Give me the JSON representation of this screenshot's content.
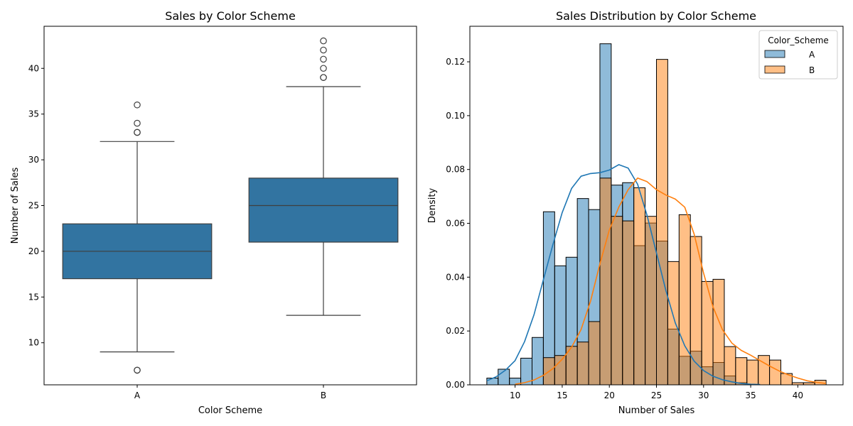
{
  "chart_data": [
    {
      "type": "box",
      "title": "Sales by Color Scheme",
      "xlabel": "Color Scheme",
      "ylabel": "Number of Sales",
      "ylim": [
        5.4,
        44.6
      ],
      "yticks": [
        10,
        15,
        20,
        25,
        30,
        35,
        40
      ],
      "categories": [
        "A",
        "B"
      ],
      "color": "#3274a1",
      "boxes": [
        {
          "category": "A",
          "q1": 17,
          "median": 20,
          "q3": 23,
          "whisker_low": 9,
          "whisker_high": 32,
          "outliers": [
            7,
            7,
            33,
            33,
            34,
            36
          ]
        },
        {
          "category": "B",
          "q1": 21,
          "median": 25,
          "q3": 28,
          "whisker_low": 13,
          "whisker_high": 38,
          "outliers": [
            39,
            39,
            40,
            41,
            42,
            43
          ]
        }
      ]
    },
    {
      "type": "histogram",
      "title": "Sales Distribution by Color Scheme",
      "xlabel": "Number of Sales",
      "ylabel": "Density",
      "xlim": [
        5.2,
        44.8
      ],
      "ylim": [
        0,
        0.1332
      ],
      "xticks": [
        10,
        15,
        20,
        25,
        30,
        35,
        40
      ],
      "yticks": [
        0.0,
        0.02,
        0.04,
        0.06,
        0.08,
        0.1,
        0.12
      ],
      "ytick_labels": [
        "0.00",
        "0.02",
        "0.04",
        "0.06",
        "0.08",
        "0.10",
        "0.12"
      ],
      "legend": {
        "title": "Color_Scheme",
        "position": "top-right"
      },
      "bin_start": 7,
      "bin_width": 1.2,
      "series": [
        {
          "name": "A",
          "color": "#1f77b4",
          "densities": [
            0.0025,
            0.0058,
            0.0025,
            0.0099,
            0.0176,
            0.0643,
            0.0442,
            0.0474,
            0.0692,
            0.0651,
            0.1267,
            0.0742,
            0.0751,
            0.0517,
            0.0601,
            0.0534,
            0.0207,
            0.0106,
            0.0125,
            0.0067,
            0.0083,
            0.0033,
            0.0008,
            0,
            0,
            0,
            0,
            0,
            0,
            0
          ],
          "kde": [
            [
              7,
              0.0015
            ],
            [
              8,
              0.003
            ],
            [
              9,
              0.0055
            ],
            [
              10,
              0.009
            ],
            [
              11,
              0.016
            ],
            [
              12,
              0.026
            ],
            [
              13,
              0.039
            ],
            [
              14,
              0.052
            ],
            [
              15,
              0.064
            ],
            [
              16,
              0.073
            ],
            [
              17,
              0.0775
            ],
            [
              18,
              0.0785
            ],
            [
              19,
              0.0788
            ],
            [
              20,
              0.0798
            ],
            [
              21,
              0.0818
            ],
            [
              22,
              0.0805
            ],
            [
              23,
              0.0745
            ],
            [
              24,
              0.063
            ],
            [
              25,
              0.049
            ],
            [
              26,
              0.035
            ],
            [
              27,
              0.023
            ],
            [
              28,
              0.0145
            ],
            [
              29,
              0.0088
            ],
            [
              30,
              0.0053
            ],
            [
              31,
              0.0032
            ],
            [
              32,
              0.0019
            ],
            [
              33,
              0.0011
            ],
            [
              34,
              0.0005
            ],
            [
              35,
              0.0002
            ],
            [
              36,
              0.0001
            ]
          ]
        },
        {
          "name": "B",
          "color": "#ff7f0e",
          "densities": [
            0,
            0,
            0,
            0,
            0,
            0.0101,
            0.0109,
            0.0143,
            0.0159,
            0.0235,
            0.0768,
            0.0626,
            0.0609,
            0.0732,
            0.0626,
            0.1209,
            0.0458,
            0.0632,
            0.0551,
            0.0384,
            0.0392,
            0.0142,
            0.0101,
            0.0092,
            0.0109,
            0.0092,
            0.0042,
            0.0008,
            0.0008,
            0.0017
          ],
          "kde": [
            [
              10,
              0.0002
            ],
            [
              11,
              0.0008
            ],
            [
              12,
              0.0018
            ],
            [
              13,
              0.0035
            ],
            [
              14,
              0.006
            ],
            [
              15,
              0.0095
            ],
            [
              16,
              0.014
            ],
            [
              17,
              0.0205
            ],
            [
              18,
              0.031
            ],
            [
              19,
              0.045
            ],
            [
              20,
              0.0575
            ],
            [
              21,
              0.066
            ],
            [
              22,
              0.0725
            ],
            [
              23,
              0.0768
            ],
            [
              24,
              0.0755
            ],
            [
              25,
              0.0725
            ],
            [
              26,
              0.0705
            ],
            [
              27,
              0.069
            ],
            [
              28,
              0.066
            ],
            [
              29,
              0.056
            ],
            [
              30,
              0.0415
            ],
            [
              31,
              0.029
            ],
            [
              32,
              0.0205
            ],
            [
              33,
              0.0155
            ],
            [
              34,
              0.0128
            ],
            [
              35,
              0.011
            ],
            [
              36,
              0.009
            ],
            [
              37,
              0.007
            ],
            [
              38,
              0.0052
            ],
            [
              39,
              0.0037
            ],
            [
              40,
              0.0025
            ],
            [
              41,
              0.0015
            ],
            [
              42,
              0.0009
            ],
            [
              43,
              0.0005
            ]
          ]
        }
      ]
    }
  ]
}
